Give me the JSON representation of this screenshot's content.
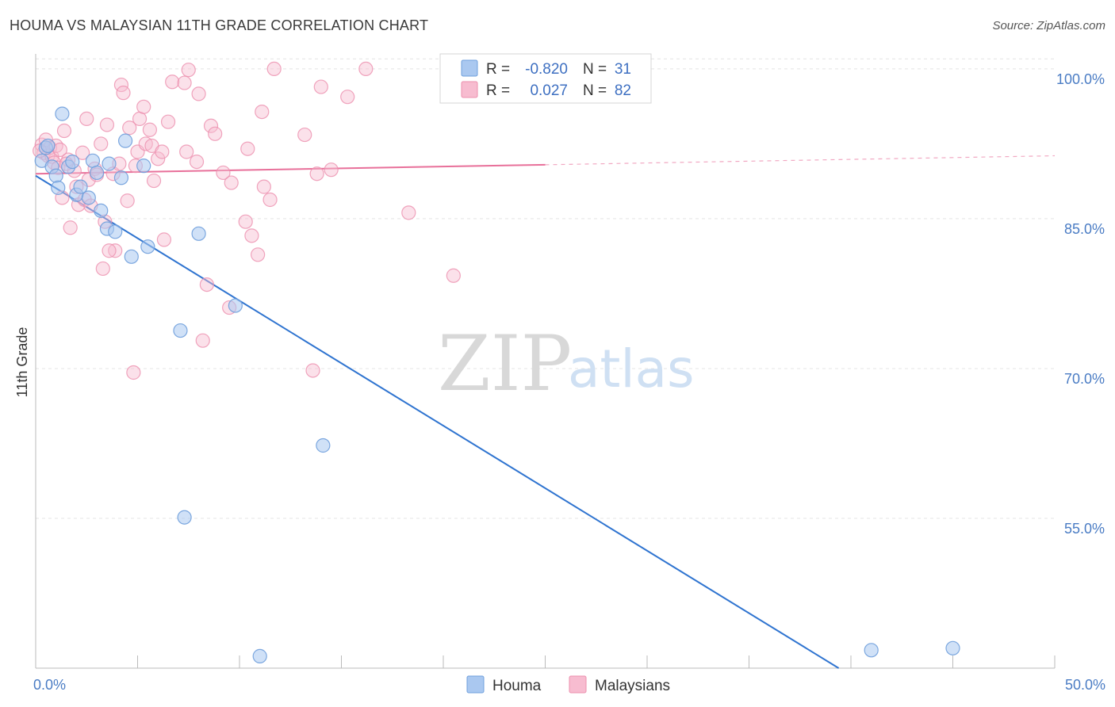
{
  "title": "HOUMA VS MALAYSIAN 11TH GRADE CORRELATION CHART",
  "source": "Source: ZipAtlas.com",
  "watermark": {
    "zip": "ZIP",
    "atlas": "atlas"
  },
  "colors": {
    "houma_fill": "#aac8f0",
    "houma_stroke": "#6f9fdc",
    "houma_line": "#2f74d0",
    "malaysians_fill": "#f7bcd0",
    "malaysians_stroke": "#ec8fae",
    "malaysians_line": "#e8709a",
    "tick_label": "#4a7cc4",
    "grid": "#e4e4e4"
  },
  "legend": {
    "rows": [
      {
        "r_label": "R =",
        "r_value": "-0.820",
        "n_label": "N =",
        "n_value": "31"
      },
      {
        "r_label": "R =",
        "r_value": "0.027",
        "n_label": "N =",
        "n_value": "82"
      }
    ]
  },
  "chart_data": {
    "type": "scatter",
    "title": "HOUMA VS MALAYSIAN 11TH GRADE CORRELATION CHART",
    "xlabel": "",
    "ylabel": "11th Grade",
    "xlim": [
      0,
      50
    ],
    "ylim": [
      40,
      101.5
    ],
    "x_tick_labels": [
      "0.0%",
      "50.0%"
    ],
    "y_ticks": [
      55,
      70,
      85,
      100
    ],
    "y_tick_labels": [
      "55.0%",
      "70.0%",
      "85.0%",
      "100.0%"
    ],
    "grid": true,
    "legend_position": "top-center",
    "series": [
      {
        "name": "Houma",
        "r": -0.82,
        "n": 31,
        "trend": {
          "x": [
            0.0,
            39.4
          ],
          "y": [
            89.3,
            40.0
          ],
          "style": "solid"
        },
        "points": [
          [
            0.3,
            90.8
          ],
          [
            0.5,
            92.1
          ],
          [
            0.8,
            90.2
          ],
          [
            1.0,
            89.3
          ],
          [
            1.1,
            88.1
          ],
          [
            1.3,
            95.5
          ],
          [
            1.6,
            90.2
          ],
          [
            1.8,
            90.7
          ],
          [
            2.0,
            87.4
          ],
          [
            2.2,
            88.2
          ],
          [
            2.6,
            87.1
          ],
          [
            2.8,
            90.8
          ],
          [
            3.2,
            85.8
          ],
          [
            3.5,
            84.0
          ],
          [
            3.6,
            90.5
          ],
          [
            3.9,
            83.7
          ],
          [
            4.2,
            89.1
          ],
          [
            4.4,
            92.8
          ],
          [
            4.7,
            81.2
          ],
          [
            5.3,
            90.3
          ],
          [
            5.5,
            82.2
          ],
          [
            7.1,
            73.8
          ],
          [
            7.3,
            55.1
          ],
          [
            8.0,
            83.5
          ],
          [
            9.8,
            76.3
          ],
          [
            11.0,
            41.2
          ],
          [
            14.1,
            62.3
          ],
          [
            41.0,
            41.8
          ],
          [
            45.0,
            42.0
          ],
          [
            0.6,
            92.3
          ],
          [
            3.0,
            89.6
          ]
        ]
      },
      {
        "name": "Malaysians",
        "r": 0.027,
        "n": 82,
        "trend": {
          "x": [
            0.0,
            25.0
          ],
          "y": [
            89.5,
            90.4
          ],
          "style": "solid",
          "extended_x": [
            25.0,
            50.0
          ],
          "extended_y": [
            90.4,
            91.3
          ],
          "extended_style": "dashed"
        },
        "points": [
          [
            0.3,
            92.4
          ],
          [
            0.4,
            91.6
          ],
          [
            0.5,
            92.9
          ],
          [
            0.6,
            91.3
          ],
          [
            0.7,
            92.1
          ],
          [
            0.8,
            91.2
          ],
          [
            0.9,
            90.6
          ],
          [
            1.0,
            92.3
          ],
          [
            1.1,
            90.1
          ],
          [
            1.2,
            91.9
          ],
          [
            1.3,
            87.1
          ],
          [
            1.4,
            93.8
          ],
          [
            1.6,
            90.9
          ],
          [
            1.7,
            84.1
          ],
          [
            1.9,
            89.8
          ],
          [
            2.0,
            88.2
          ],
          [
            2.1,
            86.4
          ],
          [
            2.3,
            91.6
          ],
          [
            2.4,
            86.9
          ],
          [
            2.6,
            88.9
          ],
          [
            2.7,
            86.3
          ],
          [
            2.9,
            90.0
          ],
          [
            3.0,
            89.4
          ],
          [
            3.2,
            92.5
          ],
          [
            3.3,
            80.0
          ],
          [
            3.4,
            84.7
          ],
          [
            3.5,
            94.4
          ],
          [
            3.8,
            89.5
          ],
          [
            3.9,
            81.8
          ],
          [
            4.1,
            90.5
          ],
          [
            4.2,
            98.4
          ],
          [
            4.3,
            97.6
          ],
          [
            4.5,
            86.8
          ],
          [
            4.8,
            69.6
          ],
          [
            4.9,
            90.3
          ],
          [
            5.0,
            91.7
          ],
          [
            5.1,
            95.0
          ],
          [
            5.3,
            96.2
          ],
          [
            5.4,
            92.5
          ],
          [
            5.6,
            93.9
          ],
          [
            5.7,
            92.3
          ],
          [
            5.8,
            88.8
          ],
          [
            6.0,
            91.0
          ],
          [
            6.3,
            82.9
          ],
          [
            6.5,
            94.7
          ],
          [
            6.7,
            98.7
          ],
          [
            7.3,
            98.6
          ],
          [
            7.4,
            91.7
          ],
          [
            7.5,
            99.9
          ],
          [
            7.9,
            90.7
          ],
          [
            8.0,
            97.5
          ],
          [
            8.2,
            72.8
          ],
          [
            8.4,
            78.4
          ],
          [
            8.6,
            94.3
          ],
          [
            8.8,
            93.5
          ],
          [
            9.2,
            89.6
          ],
          [
            9.5,
            76.1
          ],
          [
            9.6,
            88.6
          ],
          [
            10.3,
            84.7
          ],
          [
            10.4,
            92.0
          ],
          [
            10.6,
            83.3
          ],
          [
            10.9,
            81.4
          ],
          [
            11.1,
            95.7
          ],
          [
            11.2,
            88.2
          ],
          [
            11.5,
            86.9
          ],
          [
            11.7,
            100.0
          ],
          [
            13.2,
            93.4
          ],
          [
            13.6,
            69.8
          ],
          [
            13.8,
            89.5
          ],
          [
            14.0,
            98.2
          ],
          [
            14.5,
            89.9
          ],
          [
            15.3,
            97.2
          ],
          [
            16.2,
            100.0
          ],
          [
            18.3,
            85.6
          ],
          [
            20.5,
            79.3
          ],
          [
            23.1,
            100.0
          ],
          [
            3.6,
            81.8
          ],
          [
            6.2,
            91.7
          ],
          [
            2.5,
            95.0
          ],
          [
            1.5,
            90.5
          ],
          [
            4.6,
            94.1
          ],
          [
            0.2,
            91.8
          ]
        ]
      }
    ]
  }
}
